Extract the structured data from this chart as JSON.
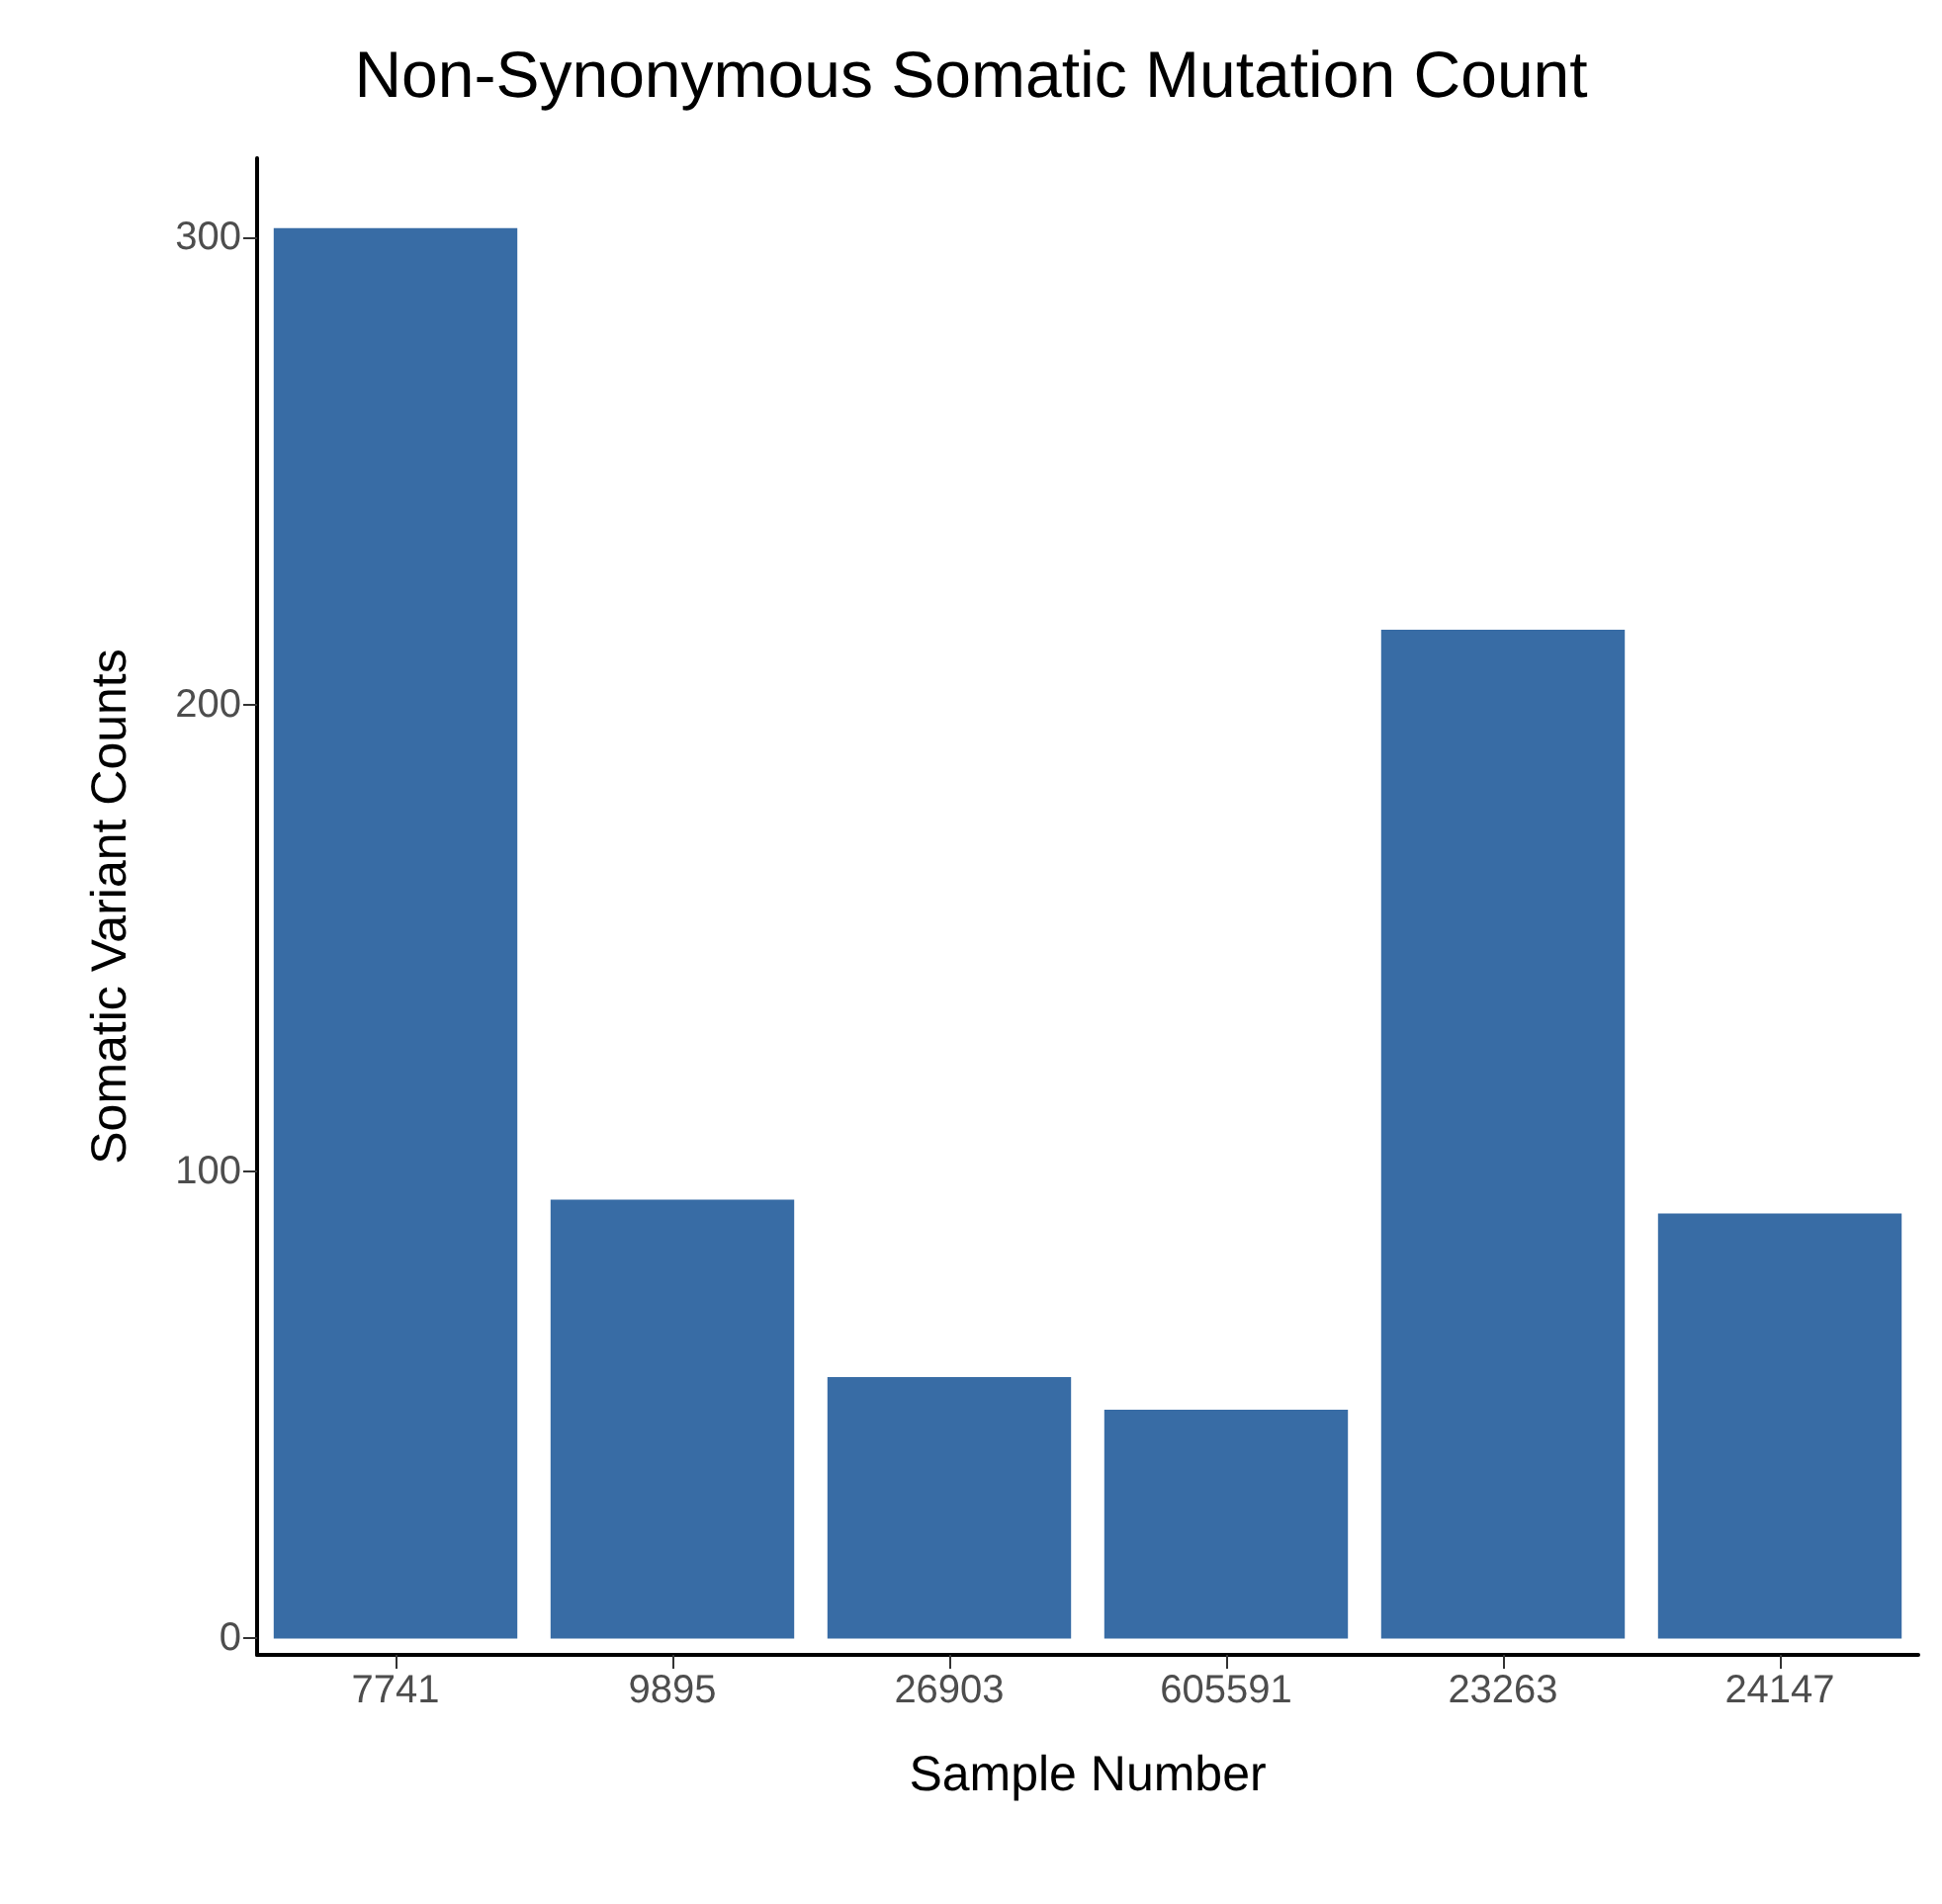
{
  "chart_data": {
    "type": "bar",
    "title": "Non-Synonymous Somatic Mutation Count",
    "xlabel": "Sample Number",
    "ylabel": "Somatic Variant Counts",
    "categories": [
      "7741",
      "9895",
      "26903",
      "605591",
      "23263",
      "24147"
    ],
    "values": [
      302,
      94,
      56,
      49,
      216,
      91
    ],
    "color": "#386ca5",
    "ylim": [
      -3.5,
      317
    ],
    "yticks": [
      0,
      100,
      200,
      300
    ],
    "grid": false
  }
}
